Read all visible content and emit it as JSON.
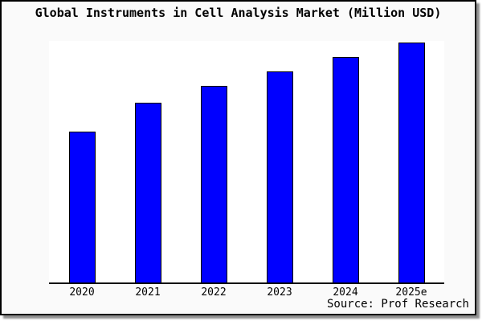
{
  "chart_data": {
    "type": "bar",
    "title": "Global Instruments in Cell Analysis Market (Million USD)",
    "categories": [
      "2020",
      "2021",
      "2022",
      "2023",
      "2024",
      "2025e"
    ],
    "values": [
      63,
      75,
      82,
      88,
      94,
      100
    ],
    "values_units": "relative (y-axis unlabeled; estimated from bar heights, 2025e = 100)",
    "xlabel": "",
    "ylabel": "",
    "ylim": [
      0,
      100.6
    ],
    "y_axis_visible": false,
    "grid": false,
    "legend": null,
    "source_label": "Source: Prof Research",
    "colors": {
      "bar_fill": "#0000ff",
      "bar_edge": "#000000",
      "frame_background": "#fafafa",
      "plot_background": "#ffffff",
      "axis_line": "#000000",
      "text": "#000000"
    }
  }
}
